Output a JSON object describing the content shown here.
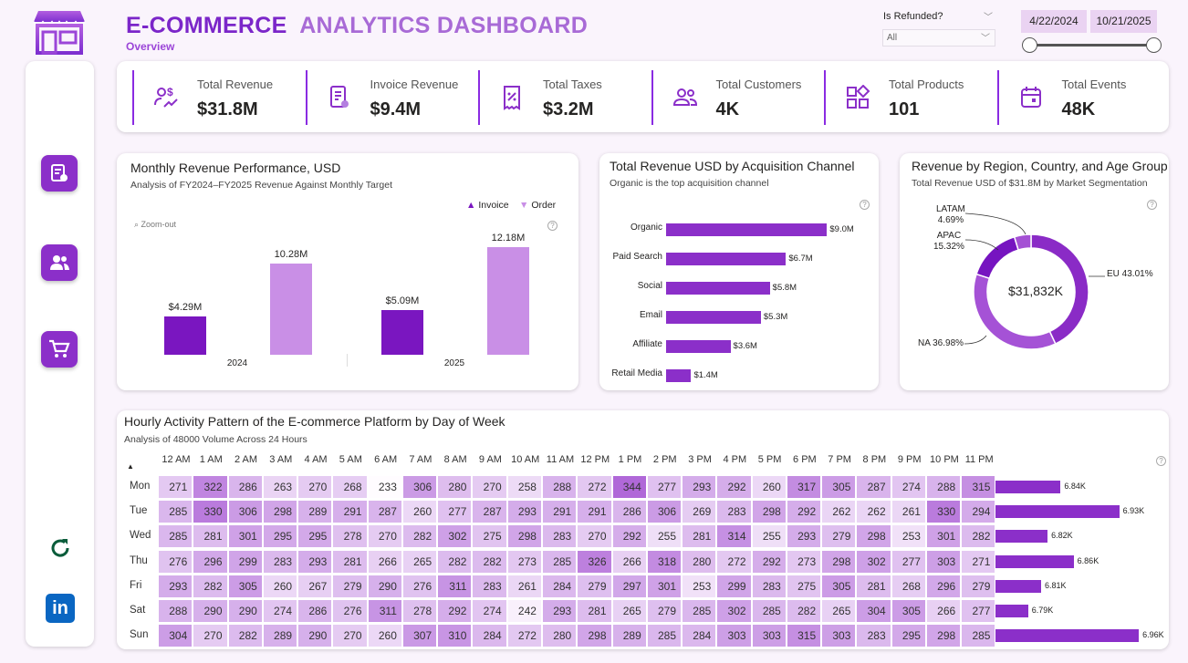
{
  "header": {
    "title_bold": "E-COMMERCE",
    "title_rest": "ANALYTICS DASHBOARD",
    "subtitle": "Overview"
  },
  "filters": {
    "refunded_label": "Is Refunded?",
    "refunded_value": "All",
    "date_start": "4/22/2024",
    "date_end": "10/21/2025"
  },
  "kpis": [
    {
      "label": "Total Revenue",
      "value": "$31.8M",
      "icon": "revenue-icon"
    },
    {
      "label": "Invoice Revenue",
      "value": "$9.4M",
      "icon": "invoice-icon"
    },
    {
      "label": "Total Taxes",
      "value": "$3.2M",
      "icon": "tax-receipt-icon"
    },
    {
      "label": "Total Customers",
      "value": "4K",
      "icon": "customers-icon"
    },
    {
      "label": "Total Products",
      "value": "101",
      "icon": "products-icon"
    },
    {
      "label": "Total Events",
      "value": "48K",
      "icon": "calendar-icon"
    }
  ],
  "colors": {
    "primary": "#8b2fc9",
    "light": "#c98fe6",
    "accent_dark": "#7a16c0"
  },
  "chart_data": [
    {
      "type": "bar",
      "title": "Monthly Revenue Performance, USD",
      "subtitle": "Analysis of FY2024–FY2025 Revenue Against Monthly Target",
      "zoom_label": "Zoom-out",
      "categories": [
        "2024",
        "2025"
      ],
      "series": [
        {
          "name": "Invoice",
          "values": [
            4.29,
            5.09
          ],
          "labels": [
            "$4.29M",
            "$5.09M"
          ]
        },
        {
          "name": "Order",
          "values": [
            10.28,
            12.18
          ],
          "labels": [
            "10.28M",
            "12.18M"
          ]
        }
      ],
      "ylim": [
        0,
        12.18
      ]
    },
    {
      "type": "bar",
      "orientation": "horizontal",
      "title": "Total Revenue USD by Acquisition Channel",
      "subtitle": "Organic is the top acquisition channel",
      "categories": [
        "Organic",
        "Paid Search",
        "Social",
        "Email",
        "Affiliate",
        "Retail Media"
      ],
      "values": [
        9.0,
        6.7,
        5.8,
        5.3,
        3.6,
        1.4
      ],
      "labels": [
        "$9.0M",
        "$6.7M",
        "$5.8M",
        "$5.3M",
        "$3.6M",
        "$1.4M"
      ]
    },
    {
      "type": "pie",
      "title": "Revenue by Region, Country, and Age Group",
      "subtitle": "Total Revenue USD of $31.8M by Market Segmentation",
      "center_label": "$31,832K",
      "slices": [
        {
          "name": "EU",
          "pct": 43.01,
          "label": "EU 43.01%"
        },
        {
          "name": "NA",
          "pct": 36.98,
          "label": "NA 36.98%"
        },
        {
          "name": "APAC",
          "pct": 15.32,
          "label": "APAC",
          "pct_label": "15.32%"
        },
        {
          "name": "LATAM",
          "pct": 4.69,
          "label": "LATAM",
          "pct_label": "4.69%"
        }
      ]
    },
    {
      "type": "heatmap",
      "title": "Hourly Activity Pattern of the E-commerce Platform by Day of Week",
      "subtitle": "Analysis of 48000 Volume Across 24 Hours",
      "hours": [
        "12 AM",
        "1 AM",
        "2 AM",
        "3 AM",
        "4 AM",
        "5 AM",
        "6 AM",
        "7 AM",
        "8 AM",
        "9 AM",
        "10 AM",
        "11 AM",
        "12 PM",
        "1 PM",
        "2 PM",
        "3 PM",
        "4 PM",
        "5 PM",
        "6 PM",
        "7 PM",
        "8 PM",
        "9 PM",
        "10 PM",
        "11 PM"
      ],
      "days": [
        "Mon",
        "Tue",
        "Wed",
        "Thu",
        "Fri",
        "Sat",
        "Sun"
      ],
      "values": [
        [
          271,
          322,
          286,
          263,
          270,
          268,
          233,
          306,
          280,
          270,
          258,
          288,
          272,
          344,
          277,
          293,
          292,
          260,
          317,
          305,
          287,
          274,
          288,
          315
        ],
        [
          285,
          330,
          306,
          298,
          289,
          291,
          287,
          260,
          277,
          287,
          293,
          291,
          291,
          286,
          306,
          269,
          283,
          298,
          292,
          262,
          262,
          261,
          330,
          294
        ],
        [
          285,
          281,
          301,
          295,
          295,
          278,
          270,
          282,
          302,
          275,
          298,
          283,
          270,
          292,
          255,
          281,
          314,
          255,
          293,
          279,
          298,
          253,
          301,
          282
        ],
        [
          276,
          296,
          299,
          283,
          293,
          281,
          266,
          265,
          282,
          282,
          273,
          285,
          326,
          266,
          318,
          280,
          272,
          292,
          273,
          298,
          302,
          277,
          303,
          271
        ],
        [
          293,
          282,
          305,
          260,
          267,
          279,
          290,
          276,
          311,
          283,
          261,
          284,
          279,
          297,
          301,
          253,
          299,
          283,
          275,
          305,
          281,
          268,
          296,
          279
        ],
        [
          288,
          290,
          290,
          274,
          286,
          276,
          311,
          278,
          292,
          274,
          242,
          293,
          281,
          265,
          279,
          285,
          302,
          285,
          282,
          265,
          304,
          305,
          266,
          277
        ],
        [
          304,
          270,
          282,
          289,
          290,
          270,
          260,
          307,
          310,
          284,
          272,
          280,
          298,
          289,
          285,
          284,
          303,
          303,
          315,
          303,
          283,
          295,
          298,
          285
        ]
      ],
      "totals": [
        6.84,
        6.93,
        6.82,
        6.86,
        6.81,
        6.79,
        6.96
      ],
      "total_labels": [
        "6.84K",
        "6.93K",
        "6.82K",
        "6.86K",
        "6.81K",
        "6.79K",
        "6.96K"
      ]
    }
  ]
}
